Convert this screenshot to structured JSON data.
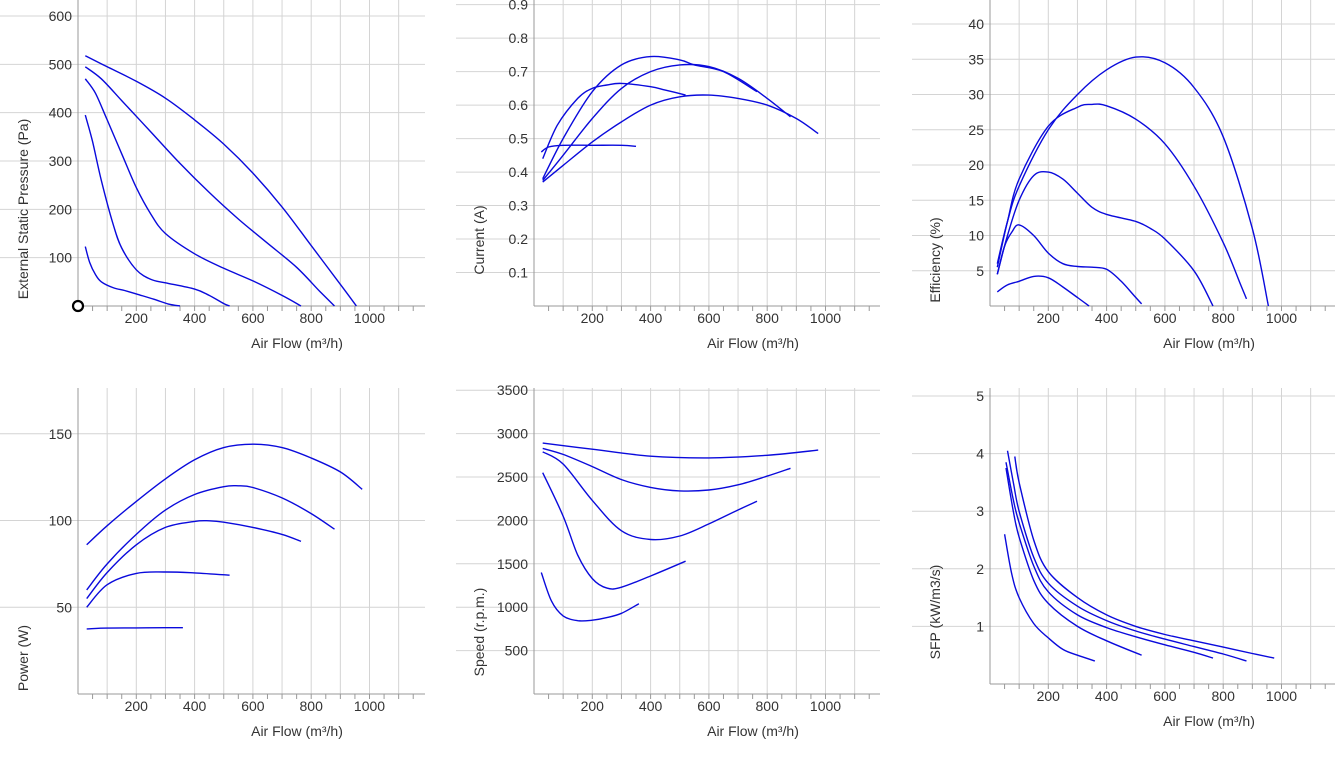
{
  "colors": {
    "curve": "#0a0adc",
    "grid": "#d4d4d4",
    "axis": "#999999",
    "text": "#333333"
  },
  "chart_data": [
    {
      "id": "pressure",
      "type": "line",
      "title": "",
      "xlabel": "Air Flow (m³/h)",
      "ylabel": "External Static Pressure (Pa)",
      "xlim": [
        0,
        1180
      ],
      "ylim": [
        0,
        620
      ],
      "xticks": [
        200,
        400,
        600,
        800,
        1000
      ],
      "yticks": [
        100,
        200,
        300,
        400,
        500,
        600
      ],
      "grid": true,
      "marker": {
        "x": 0,
        "y": 0
      },
      "series": [
        {
          "x": [
            25,
            100,
            200,
            300,
            400,
            500,
            600,
            700,
            800,
            900,
            955
          ],
          "y": [
            518,
            495,
            465,
            430,
            385,
            335,
            275,
            205,
            125,
            45,
            0
          ]
        },
        {
          "x": [
            25,
            80,
            150,
            250,
            350,
            450,
            550,
            650,
            750,
            830,
            880
          ],
          "y": [
            495,
            470,
            425,
            360,
            295,
            235,
            180,
            130,
            80,
            30,
            0
          ]
        },
        {
          "x": [
            25,
            60,
            100,
            150,
            200,
            250,
            300,
            400,
            500,
            600,
            700,
            765
          ],
          "y": [
            470,
            440,
            385,
            315,
            245,
            190,
            150,
            108,
            78,
            52,
            22,
            0
          ]
        },
        {
          "x": [
            25,
            50,
            80,
            120,
            150,
            200,
            250,
            300,
            400,
            450,
            500,
            520
          ],
          "y": [
            395,
            340,
            260,
            170,
            120,
            75,
            55,
            48,
            35,
            22,
            5,
            0
          ]
        },
        {
          "x": [
            25,
            40,
            60,
            80,
            120,
            160,
            200,
            260,
            310,
            350
          ],
          "y": [
            123,
            90,
            65,
            50,
            38,
            32,
            25,
            14,
            4,
            0
          ]
        }
      ]
    },
    {
      "id": "current",
      "type": "line",
      "title": "",
      "xlabel": "Air Flow (m³/h)",
      "ylabel": "Current (A)",
      "xlim": [
        0,
        1180
      ],
      "ylim": [
        0,
        0.92
      ],
      "xticks": [
        200,
        400,
        600,
        800,
        1000
      ],
      "yticks": [
        0.1,
        0.2,
        0.3,
        0.4,
        0.5,
        0.6,
        0.7,
        0.8,
        0.9
      ],
      "grid": true,
      "series": [
        {
          "x": [
            30,
            100,
            200,
            300,
            400,
            500,
            600,
            700,
            800,
            900,
            975
          ],
          "y": [
            0.37,
            0.42,
            0.49,
            0.55,
            0.6,
            0.625,
            0.63,
            0.62,
            0.6,
            0.56,
            0.515
          ]
        },
        {
          "x": [
            30,
            100,
            200,
            300,
            400,
            500,
            600,
            700,
            800,
            880
          ],
          "y": [
            0.375,
            0.45,
            0.56,
            0.65,
            0.7,
            0.72,
            0.715,
            0.68,
            0.62,
            0.565
          ]
        },
        {
          "x": [
            30,
            100,
            200,
            300,
            400,
            500,
            550,
            650,
            765
          ],
          "y": [
            0.38,
            0.5,
            0.64,
            0.72,
            0.745,
            0.735,
            0.72,
            0.7,
            0.64
          ]
        },
        {
          "x": [
            30,
            80,
            150,
            200,
            250,
            300,
            400,
            450,
            520
          ],
          "y": [
            0.44,
            0.54,
            0.62,
            0.65,
            0.66,
            0.665,
            0.655,
            0.645,
            0.63
          ]
        },
        {
          "x": [
            25,
            50,
            100,
            200,
            300,
            350
          ],
          "y": [
            0.46,
            0.475,
            0.48,
            0.48,
            0.48,
            0.477
          ]
        }
      ]
    },
    {
      "id": "efficiency",
      "type": "line",
      "title": "",
      "xlabel": "Air Flow (m³/h)",
      "ylabel": "Efficiency (%)",
      "xlim": [
        0,
        1180
      ],
      "ylim": [
        0,
        43
      ],
      "xticks": [
        200,
        400,
        600,
        800,
        1000
      ],
      "yticks": [
        5,
        10,
        15,
        20,
        25,
        30,
        35,
        40
      ],
      "grid": true,
      "series": [
        {
          "x": [
            25,
            60,
            100,
            200,
            300,
            400,
            500,
            600,
            700,
            800,
            900,
            955
          ],
          "y": [
            6,
            12,
            17,
            25,
            30,
            33.5,
            35.3,
            34.5,
            31,
            24,
            11,
            0
          ]
        },
        {
          "x": [
            25,
            60,
            100,
            200,
            300,
            350,
            400,
            500,
            600,
            700,
            800,
            860,
            880
          ],
          "y": [
            5.5,
            12,
            18,
            25.5,
            28.2,
            28.6,
            28.4,
            26.5,
            23,
            17,
            9,
            3,
            1
          ]
        },
        {
          "x": [
            25,
            60,
            100,
            150,
            200,
            250,
            300,
            350,
            400,
            500,
            550,
            600,
            700,
            765
          ],
          "y": [
            4.5,
            10,
            15,
            18.5,
            19,
            18,
            16,
            14,
            13,
            12,
            11,
            9.5,
            5,
            0
          ]
        },
        {
          "x": [
            25,
            50,
            75,
            100,
            150,
            200,
            250,
            300,
            350,
            400,
            450,
            500,
            520
          ],
          "y": [
            4.5,
            8.5,
            10.5,
            11.5,
            10,
            7.5,
            6,
            5.6,
            5.5,
            5.2,
            3.5,
            1.2,
            0.3
          ]
        },
        {
          "x": [
            25,
            60,
            100,
            150,
            200,
            250,
            300,
            340
          ],
          "y": [
            2,
            3,
            3.5,
            4.2,
            4,
            2.7,
            1.2,
            0
          ]
        }
      ]
    },
    {
      "id": "power",
      "type": "line",
      "title": "",
      "xlabel": "Air Flow (m³/h)",
      "ylabel": "Power (W)",
      "xlim": [
        0,
        1180
      ],
      "ylim": [
        0,
        177
      ],
      "xticks": [
        200,
        400,
        600,
        800,
        1000
      ],
      "yticks": [
        50,
        100,
        150
      ],
      "grid": true,
      "series": [
        {
          "x": [
            30,
            100,
            200,
            300,
            400,
            500,
            600,
            700,
            800,
            900,
            975
          ],
          "y": [
            86,
            97,
            111,
            124,
            135,
            142,
            144,
            142,
            136,
            128,
            118
          ]
        },
        {
          "x": [
            30,
            100,
            200,
            300,
            400,
            500,
            550,
            600,
            700,
            800,
            880
          ],
          "y": [
            60,
            75,
            92,
            106,
            115,
            119.5,
            120,
            119,
            113,
            104,
            95
          ]
        },
        {
          "x": [
            30,
            100,
            200,
            300,
            400,
            450,
            500,
            600,
            700,
            765
          ],
          "y": [
            55,
            70,
            86,
            96,
            99.5,
            99.8,
            99,
            96,
            92,
            88
          ]
        },
        {
          "x": [
            30,
            100,
            200,
            300,
            400,
            520
          ],
          "y": [
            50,
            63,
            69.5,
            70.3,
            69.8,
            68.5
          ]
        },
        {
          "x": [
            30,
            100,
            200,
            300,
            360
          ],
          "y": [
            37.5,
            38,
            38.1,
            38.2,
            38.2
          ]
        }
      ]
    },
    {
      "id": "speed",
      "type": "line",
      "title": "",
      "xlabel": "Air Flow (m³/h)",
      "ylabel": "Speed (r.p.m.)",
      "xlim": [
        0,
        1180
      ],
      "ylim": [
        0,
        3550
      ],
      "xticks": [
        200,
        400,
        600,
        800,
        1000
      ],
      "yticks": [
        500,
        1000,
        1500,
        2000,
        2500,
        3000,
        3500
      ],
      "grid": true,
      "series": [
        {
          "x": [
            30,
            200,
            400,
            600,
            800,
            975
          ],
          "y": [
            2890,
            2820,
            2740,
            2720,
            2750,
            2810
          ]
        },
        {
          "x": [
            30,
            100,
            200,
            300,
            400,
            500,
            600,
            700,
            800,
            880
          ],
          "y": [
            2830,
            2760,
            2620,
            2470,
            2380,
            2340,
            2350,
            2410,
            2510,
            2600
          ]
        },
        {
          "x": [
            30,
            100,
            200,
            300,
            400,
            500,
            600,
            700,
            765
          ],
          "y": [
            2790,
            2650,
            2230,
            1880,
            1780,
            1820,
            1960,
            2120,
            2220
          ]
        },
        {
          "x": [
            30,
            100,
            150,
            200,
            250,
            300,
            400,
            520
          ],
          "y": [
            2550,
            2050,
            1600,
            1330,
            1220,
            1230,
            1360,
            1530
          ]
        },
        {
          "x": [
            25,
            60,
            100,
            150,
            200,
            250,
            300,
            360
          ],
          "y": [
            1400,
            1070,
            900,
            845,
            850,
            880,
            930,
            1040
          ]
        }
      ]
    },
    {
      "id": "sfp",
      "type": "line",
      "title": "",
      "xlabel": "Air Flow (m³/h)",
      "ylabel": "SFP (kW/m3/s)",
      "xlim": [
        0,
        1180
      ],
      "ylim": [
        0,
        5.2
      ],
      "xticks": [
        200,
        400,
        600,
        800,
        1000
      ],
      "yticks": [
        1,
        2,
        3,
        4,
        5
      ],
      "grid": true,
      "series": [
        {
          "x": [
            85,
            100,
            150,
            200,
            300,
            400,
            500,
            600,
            700,
            800,
            900,
            975
          ],
          "y": [
            3.95,
            3.5,
            2.5,
            1.95,
            1.5,
            1.2,
            1.0,
            0.86,
            0.75,
            0.64,
            0.53,
            0.45
          ]
        },
        {
          "x": [
            60,
            80,
            100,
            150,
            200,
            300,
            400,
            500,
            600,
            700,
            800,
            880
          ],
          "y": [
            4.05,
            3.5,
            3.0,
            2.2,
            1.75,
            1.35,
            1.1,
            0.92,
            0.78,
            0.65,
            0.52,
            0.4
          ]
        },
        {
          "x": [
            55,
            80,
            100,
            150,
            200,
            300,
            400,
            500,
            600,
            700,
            765
          ],
          "y": [
            3.85,
            3.2,
            2.8,
            2.05,
            1.6,
            1.2,
            0.98,
            0.82,
            0.68,
            0.55,
            0.45
          ]
        },
        {
          "x": [
            55,
            80,
            100,
            150,
            200,
            300,
            400,
            520
          ],
          "y": [
            3.75,
            3.0,
            2.55,
            1.8,
            1.4,
            1.0,
            0.75,
            0.5
          ]
        },
        {
          "x": [
            50,
            75,
            100,
            150,
            200,
            250,
            300,
            360
          ],
          "y": [
            2.6,
            1.9,
            1.5,
            1.05,
            0.8,
            0.6,
            0.5,
            0.4
          ]
        }
      ]
    }
  ]
}
